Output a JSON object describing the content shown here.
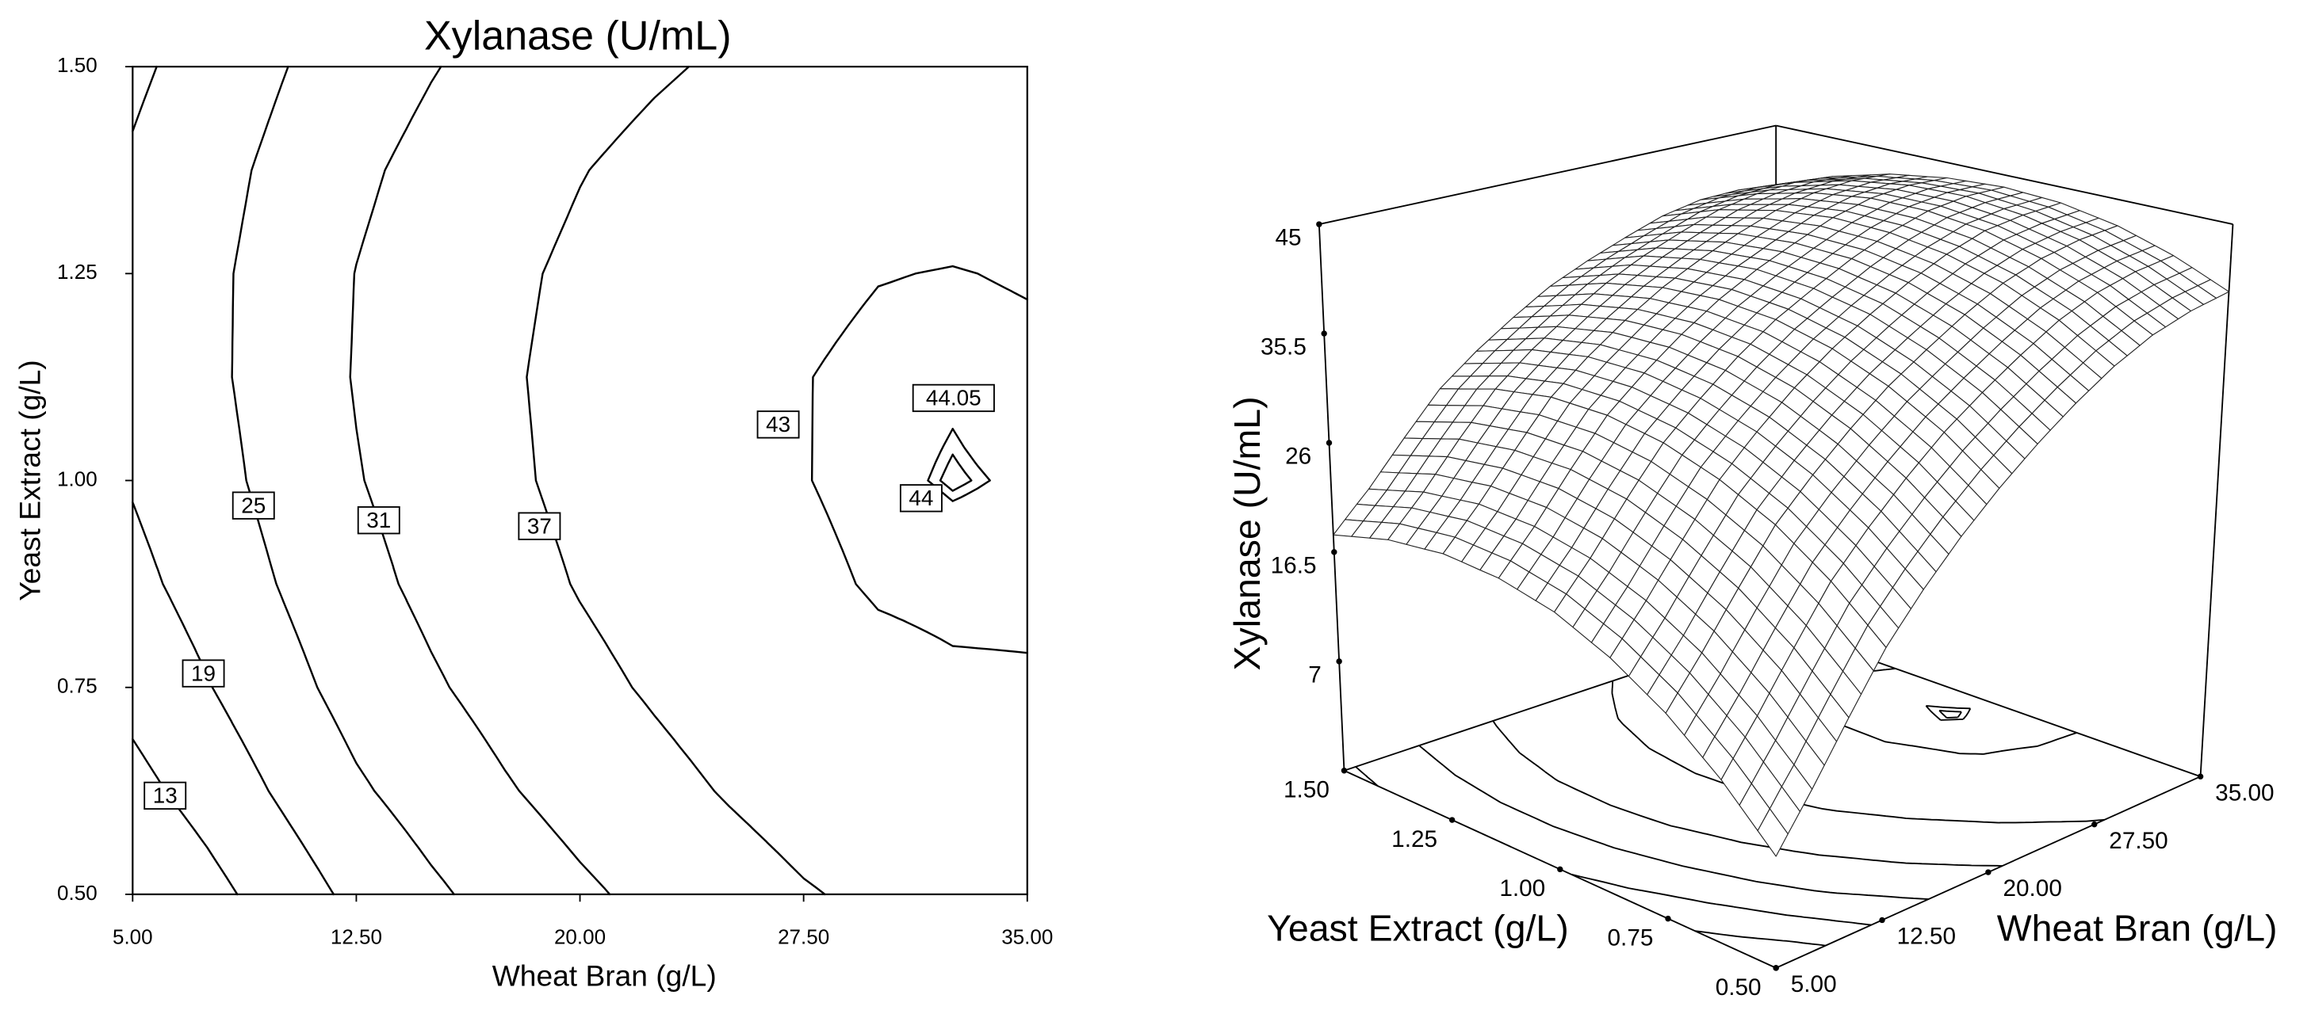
{
  "chart_data": [
    {
      "type": "contour",
      "title": "Xylanase (U/mL)",
      "xlabel": "Wheat Bran (g/L)",
      "ylabel": "Yeast Extract (g/L)",
      "xlim": [
        5,
        35
      ],
      "ylim": [
        0.5,
        1.5
      ],
      "xticks": [
        {
          "value": 5,
          "label": "5.00"
        },
        {
          "value": 12.5,
          "label": "12.50"
        },
        {
          "value": 20,
          "label": "20.00"
        },
        {
          "value": 27.5,
          "label": "27.50"
        },
        {
          "value": 35,
          "label": "35.00"
        }
      ],
      "yticks": [
        {
          "value": 0.5,
          "label": "0.50"
        },
        {
          "value": 0.75,
          "label": "0.75"
        },
        {
          "value": 1,
          "label": "1.00"
        },
        {
          "value": 1.25,
          "label": "1.25"
        },
        {
          "value": 1.5,
          "label": "1.50"
        }
      ],
      "levels": [
        13,
        19,
        25,
        31,
        37,
        43,
        44,
        44.05
      ],
      "x": [
        5,
        7.5,
        10,
        12.5,
        15,
        17.5,
        20,
        22.5,
        25,
        27.5,
        30,
        32.5,
        35
      ],
      "y": [
        0.5,
        0.625,
        0.75,
        0.875,
        1,
        1.125,
        1.25,
        1.375,
        1.5
      ],
      "z": [
        [
          6.8,
          11.1,
          15.8,
          20.4,
          24.0,
          27.2,
          30.0,
          32.5,
          34.7,
          36.6,
          38.0,
          38.8,
          39.2
        ],
        [
          11.2,
          15.3,
          19.8,
          24.2,
          27.5,
          30.5,
          33.2,
          35.4,
          37.4,
          39.2,
          40.4,
          41.0,
          41.2
        ],
        [
          14.8,
          18.7,
          23.0,
          27.2,
          30.3,
          33.1,
          35.6,
          37.6,
          39.5,
          41.1,
          42.1,
          42.6,
          42.7
        ],
        [
          17.5,
          21.2,
          25.3,
          29.3,
          32.3,
          35.0,
          37.3,
          39.2,
          40.9,
          42.3,
          43.3,
          43.6,
          43.6
        ],
        [
          19.4,
          22.9,
          26.9,
          30.7,
          33.5,
          36.1,
          38.3,
          40.0,
          41.6,
          42.9,
          43.8,
          44.1,
          43.9
        ],
        [
          20.3,
          23.7,
          27.6,
          31.3,
          34.0,
          36.4,
          38.5,
          40.2,
          41.6,
          42.9,
          43.7,
          43.9,
          43.6
        ],
        [
          20.4,
          23.7,
          27.4,
          31.1,
          33.7,
          36.0,
          38.0,
          39.6,
          41.0,
          42.2,
          42.9,
          43.1,
          42.8
        ],
        [
          19.6,
          22.8,
          26.5,
          30.0,
          32.6,
          34.8,
          36.8,
          38.4,
          39.7,
          40.9,
          41.5,
          41.7,
          41.4
        ],
        [
          18.0,
          21.1,
          24.7,
          28.2,
          30.7,
          32.9,
          34.9,
          36.4,
          37.7,
          38.9,
          39.6,
          39.7,
          39.4
        ]
      ]
    },
    {
      "type": "surface",
      "xlabel": "Wheat Bran (g/L)",
      "ylabel": "Yeast Extract (g/L)",
      "zlabel": "Xylanase (U/mL)",
      "xlim": [
        5,
        35
      ],
      "ylim": [
        0.5,
        1.5
      ],
      "zlim": [
        -2.5,
        45
      ],
      "xticks": [
        {
          "value": 5,
          "label": "5.00"
        },
        {
          "value": 12.5,
          "label": "12.50"
        },
        {
          "value": 20,
          "label": "20.00"
        },
        {
          "value": 27.5,
          "label": "27.50"
        },
        {
          "value": 35,
          "label": "35.00"
        }
      ],
      "yticks": [
        {
          "value": 0.5,
          "label": "0.50"
        },
        {
          "value": 0.75,
          "label": "0.75"
        },
        {
          "value": 1,
          "label": "1.00"
        },
        {
          "value": 1.25,
          "label": "1.25"
        },
        {
          "value": 1.5,
          "label": "1.50"
        }
      ],
      "zticks": [
        7,
        16.5,
        26,
        35.5,
        45
      ]
    }
  ]
}
